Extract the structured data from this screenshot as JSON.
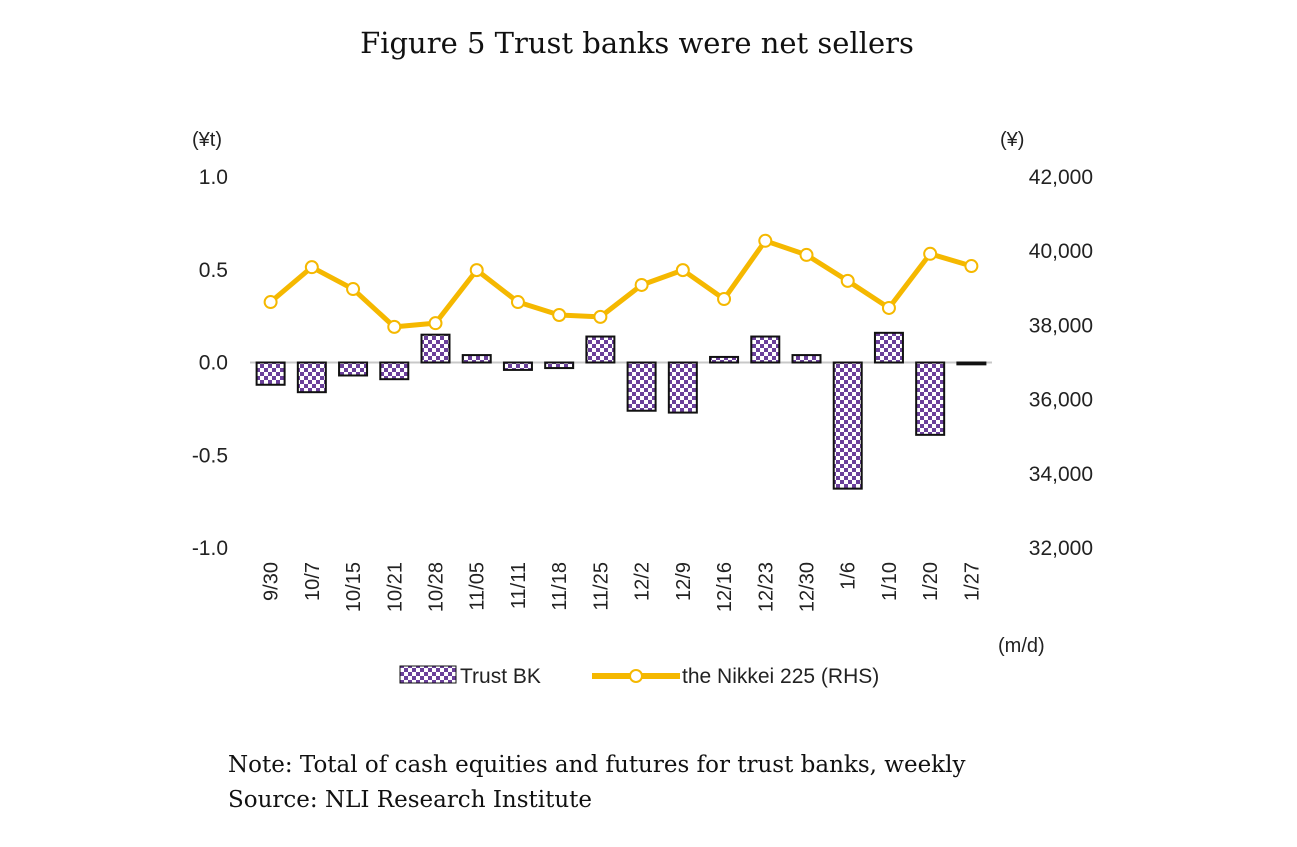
{
  "title": "Figure 5 Trust banks were net sellers",
  "note": "Note: Total of cash equities and futures for trust banks, weekly",
  "source": "Source: NLI Research Institute",
  "colors": {
    "bar_fill": "#6a3f9a",
    "bar_fill_light": "#ffffff",
    "bar_stroke": "#111111",
    "line": "#f5b800",
    "zero_line": "#c8c8c8",
    "text": "#222222"
  },
  "chart_data": {
    "type": "bar+line",
    "title": "Figure 5 Trust banks were net sellers",
    "categories": [
      "9/30",
      "10/7",
      "10/15",
      "10/21",
      "10/28",
      "11/05",
      "11/11",
      "11/18",
      "11/25",
      "12/2",
      "12/9",
      "12/16",
      "12/23",
      "12/30",
      "1/6",
      "1/10",
      "1/20",
      "1/27"
    ],
    "xlabel": "(m/d)",
    "ylabel_left": "(¥t)",
    "ylabel_right": "(¥)",
    "ylim_left": [
      -1.0,
      1.0
    ],
    "ylim_right": [
      32000,
      42000
    ],
    "yticks_left": [
      "1.0",
      "0.5",
      "0.0",
      "-0.5",
      "-1.0"
    ],
    "yticks_left_values": [
      1.0,
      0.5,
      0.0,
      -0.5,
      -1.0
    ],
    "yticks_right": [
      "42,000",
      "40,000",
      "38,000",
      "36,000",
      "34,000",
      "32,000"
    ],
    "yticks_right_values": [
      42000,
      40000,
      38000,
      36000,
      34000,
      32000
    ],
    "grid": false,
    "legend_position": "bottom",
    "series": [
      {
        "name": "Trust BK",
        "type": "bar",
        "axis": "left",
        "values": [
          -0.12,
          -0.16,
          -0.07,
          -0.09,
          0.15,
          0.04,
          -0.04,
          -0.03,
          0.14,
          -0.26,
          -0.27,
          0.03,
          0.14,
          0.04,
          -0.68,
          0.16,
          -0.39,
          -0.01
        ]
      },
      {
        "name": "the Nikkei 225 (RHS)",
        "type": "line",
        "axis": "right",
        "values": [
          38630,
          39570,
          38980,
          37960,
          38060,
          39490,
          38630,
          38280,
          38230,
          39090,
          39490,
          38710,
          40280,
          39900,
          39200,
          38470,
          39930,
          39600
        ]
      }
    ]
  }
}
